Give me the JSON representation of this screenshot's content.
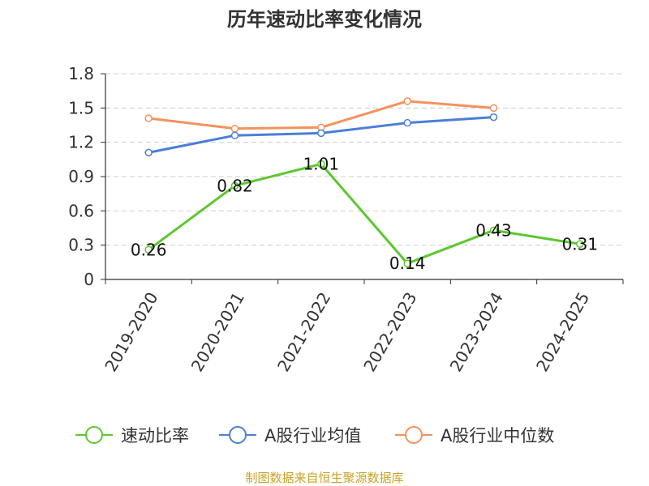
{
  "chart_data": {
    "type": "line",
    "title": "历年速动比率变化情况",
    "categories": [
      "2019-2020",
      "2020-2021",
      "2021-2022",
      "2022-2023",
      "2023-2024",
      "2024-2025"
    ],
    "ylim": [
      0,
      1.8
    ],
    "yticks": [
      "0",
      "0.3",
      "0.6",
      "0.9",
      "1.2",
      "1.5",
      "1.8"
    ],
    "grid": true,
    "legend_position": "bottom",
    "series": [
      {
        "name": "速动比率",
        "color": "#5cc72e",
        "values": [
          0.26,
          0.82,
          1.01,
          0.14,
          0.43,
          0.31
        ],
        "labels": [
          "0.26",
          "0.82",
          "1.01",
          "0.14",
          "0.43",
          "0.31"
        ]
      },
      {
        "name": "A股行业均值",
        "color": "#4a7fd8",
        "values": [
          1.11,
          1.26,
          1.28,
          1.37,
          1.42,
          null
        ]
      },
      {
        "name": "A股行业中位数",
        "color": "#f4925c",
        "values": [
          1.41,
          1.32,
          1.33,
          1.56,
          1.5,
          null
        ]
      }
    ],
    "source": "制图数据来自恒生聚源数据库"
  }
}
